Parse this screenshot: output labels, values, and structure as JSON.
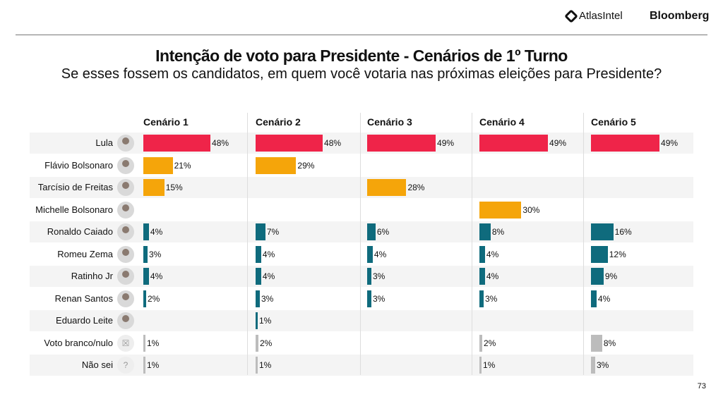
{
  "header": {
    "brand1": "AtlasIntel",
    "brand2": "Bloomberg",
    "page_number": "73"
  },
  "colors": {
    "lula": "#ef2449",
    "opponent": "#f5a50a",
    "other": "#0f6b7d",
    "blank": "#bcbcbc"
  },
  "chart_data": {
    "type": "bar",
    "title": "Intenção de voto para Presidente - Cenários de 1º Turno",
    "subtitle": "Se esses fossem os candidatos, em quem você votaria nas próximas eleições para Presidente?",
    "scenarios": [
      "Cenário 1",
      "Cenário 2",
      "Cenário 3",
      "Cenário 4",
      "Cenário 5"
    ],
    "categories": [
      "Lula",
      "Flávio Bolsonaro",
      "Tarcísio de Freitas",
      "Michelle Bolsonaro",
      "Ronaldo Caiado",
      "Romeu Zema",
      "Ratinho Jr",
      "Renan Santos",
      "Eduardo Leite",
      "Voto branco/nulo",
      "Não sei"
    ],
    "color_group": [
      "lula",
      "opponent",
      "opponent",
      "opponent",
      "other",
      "other",
      "other",
      "other",
      "other",
      "blank",
      "blank"
    ],
    "series": [
      {
        "values": [
          48,
          21,
          15,
          null,
          4,
          3,
          4,
          2,
          null,
          1,
          1
        ]
      },
      {
        "values": [
          48,
          29,
          null,
          null,
          7,
          4,
          4,
          3,
          1,
          2,
          1
        ]
      },
      {
        "values": [
          49,
          null,
          28,
          null,
          6,
          4,
          3,
          3,
          null,
          null,
          null
        ]
      },
      {
        "values": [
          49,
          null,
          null,
          30,
          8,
          4,
          4,
          3,
          null,
          2,
          1
        ]
      },
      {
        "values": [
          49,
          null,
          null,
          null,
          16,
          12,
          9,
          4,
          null,
          8,
          3
        ]
      }
    ],
    "unit": "%"
  }
}
